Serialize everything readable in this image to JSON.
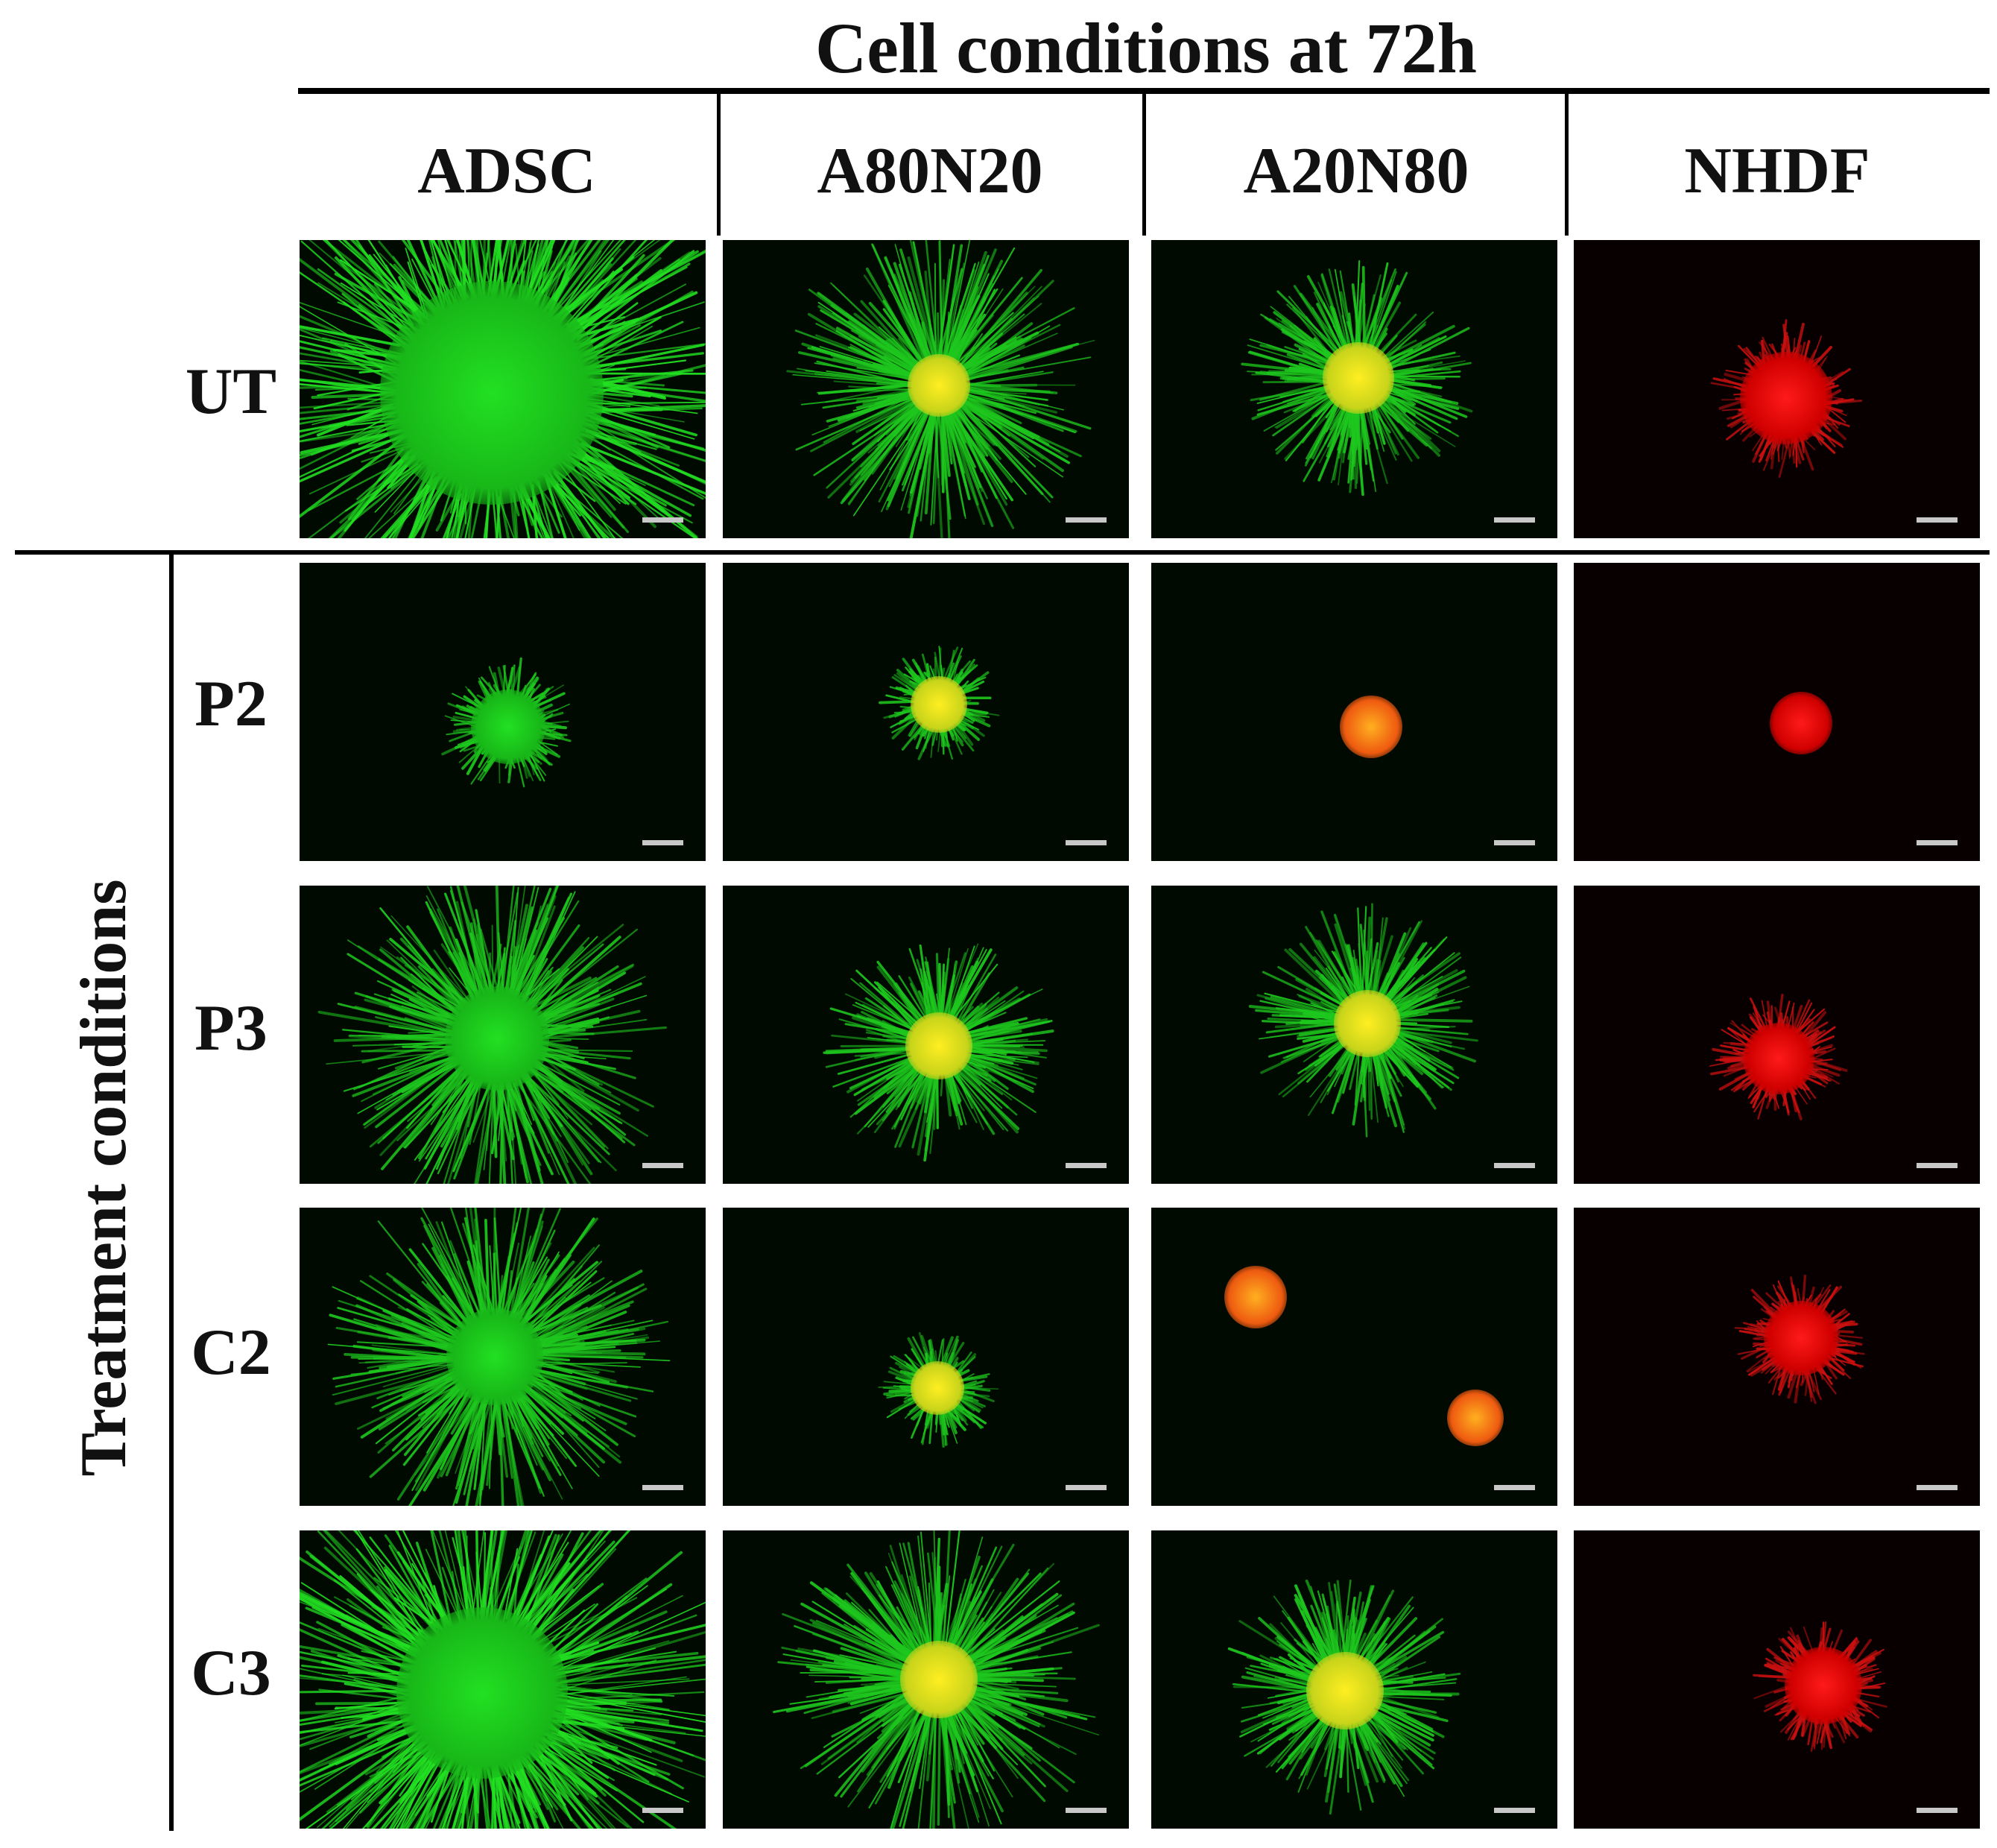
{
  "figure": {
    "top_header": "Cell conditions at 72h",
    "side_header": "Treatment conditions",
    "columns": [
      "ADSC",
      "A80N20",
      "A20N80",
      "NHDF"
    ],
    "rows": [
      "UT",
      "P2",
      "P3",
      "C2",
      "C3"
    ]
  },
  "colors": {
    "green_stain": "#22e022",
    "red_stain": "#ff1a1a",
    "merged_yellow": "#ffee22",
    "panel_background": "#000000",
    "scale_bar": "#c8c8c8"
  },
  "panels": [
    [
      {
        "spheroid": "green",
        "spread": "very-high"
      },
      {
        "spheroid": "yellow",
        "spread": "high"
      },
      {
        "spheroid": "yellow",
        "spread": "medium"
      },
      {
        "spheroid": "red",
        "spread": "low"
      }
    ],
    [
      {
        "spheroid": "green",
        "spread": "low"
      },
      {
        "spheroid": "yellow",
        "spread": "low"
      },
      {
        "spheroid": "orange",
        "spread": "none"
      },
      {
        "spheroid": "red",
        "spread": "none"
      }
    ],
    [
      {
        "spheroid": "green",
        "spread": "high"
      },
      {
        "spheroid": "yellow",
        "spread": "medium"
      },
      {
        "spheroid": "yellow",
        "spread": "medium"
      },
      {
        "spheroid": "red",
        "spread": "low"
      }
    ],
    [
      {
        "spheroid": "green",
        "spread": "high"
      },
      {
        "spheroid": "yellow",
        "spread": "low"
      },
      {
        "spheroid": "orange-pair",
        "spread": "none"
      },
      {
        "spheroid": "red",
        "spread": "low"
      }
    ],
    [
      {
        "spheroid": "green",
        "spread": "very-high"
      },
      {
        "spheroid": "yellow",
        "spread": "high"
      },
      {
        "spheroid": "yellow",
        "spread": "medium"
      },
      {
        "spheroid": "red",
        "spread": "low"
      }
    ]
  ]
}
